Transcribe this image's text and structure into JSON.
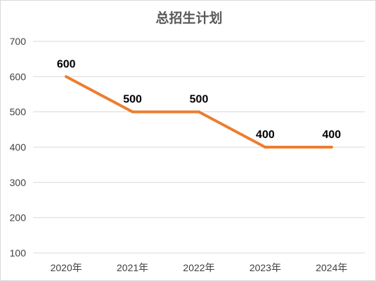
{
  "chart_data": {
    "type": "line",
    "title": "总招生计划",
    "categories": [
      "2020年",
      "2021年",
      "2022年",
      "2023年",
      "2024年"
    ],
    "series": [
      {
        "values": [
          600,
          500,
          500,
          400,
          400
        ],
        "color": "#ed7d31"
      }
    ],
    "data_labels": [
      "600",
      "500",
      "500",
      "400",
      "400"
    ],
    "yticks": [
      "700",
      "600",
      "500",
      "400",
      "300",
      "200",
      "100"
    ],
    "ylim": [
      100,
      700
    ],
    "grid": true,
    "legend": "none"
  }
}
